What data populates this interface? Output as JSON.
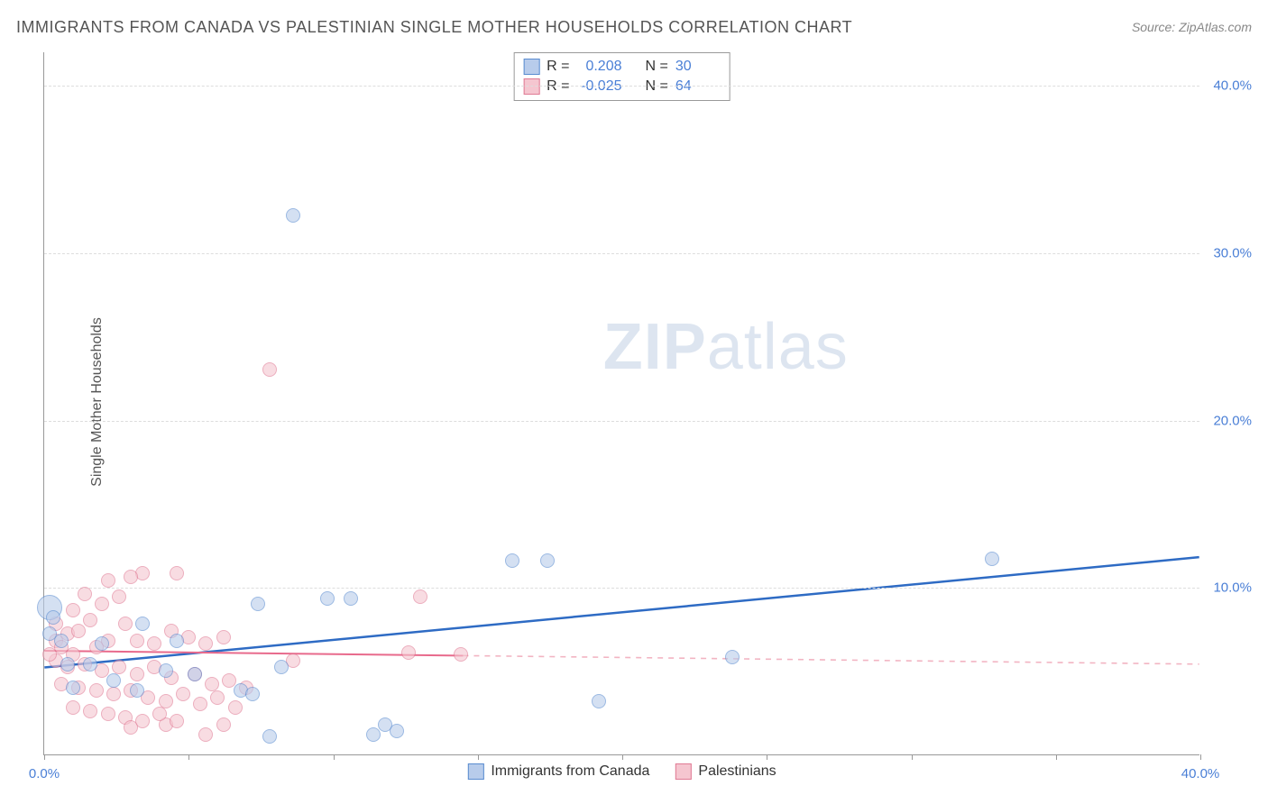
{
  "title": "IMMIGRANTS FROM CANADA VS PALESTINIAN SINGLE MOTHER HOUSEHOLDS CORRELATION CHART",
  "source": "Source: ZipAtlas.com",
  "ylabel": "Single Mother Households",
  "watermark_bold": "ZIP",
  "watermark_light": "atlas",
  "chart": {
    "type": "scatter",
    "xlim": [
      0,
      40
    ],
    "ylim": [
      0,
      42
    ],
    "x_ticks": [
      0,
      5,
      10,
      15,
      20,
      25,
      30,
      35,
      40
    ],
    "y_gridlines": [
      10,
      20,
      30,
      40
    ],
    "x_axis_labels": [
      {
        "pos": 0,
        "text": "0.0%"
      },
      {
        "pos": 40,
        "text": "40.0%"
      }
    ],
    "y_axis_labels": [
      {
        "pos": 10,
        "text": "10.0%"
      },
      {
        "pos": 20,
        "text": "20.0%"
      },
      {
        "pos": 30,
        "text": "30.0%"
      },
      {
        "pos": 40,
        "text": "40.0%"
      }
    ],
    "background_color": "#ffffff",
    "grid_color": "#dddddd",
    "axis_color": "#999999",
    "tick_label_color": "#4a7fd6",
    "marker_radius": 8,
    "marker_border_width": 1.2,
    "series": [
      {
        "name": "Immigrants from Canada",
        "fill_color": "#b8cceb",
        "border_color": "#5a8cd0",
        "fill_opacity": 0.6,
        "stats": {
          "R": "0.208",
          "N": "30"
        },
        "trend": {
          "solid_from_x": 0,
          "solid_to_x": 40,
          "y_at_x0": 5.2,
          "y_at_x40": 11.8,
          "color": "#2e6bc4",
          "width": 2.5
        },
        "points": [
          {
            "x": 0.2,
            "y": 8.8,
            "r": 14
          },
          {
            "x": 8.6,
            "y": 32.2
          },
          {
            "x": 16.2,
            "y": 11.6
          },
          {
            "x": 17.4,
            "y": 11.6
          },
          {
            "x": 23.8,
            "y": 5.8
          },
          {
            "x": 32.8,
            "y": 11.7
          },
          {
            "x": 19.2,
            "y": 3.2
          },
          {
            "x": 7.8,
            "y": 1.1
          },
          {
            "x": 11.4,
            "y": 1.2
          },
          {
            "x": 12.2,
            "y": 1.4
          },
          {
            "x": 11.8,
            "y": 1.8
          },
          {
            "x": 10.6,
            "y": 9.3
          },
          {
            "x": 9.8,
            "y": 9.3
          },
          {
            "x": 7.4,
            "y": 9.0
          },
          {
            "x": 8.2,
            "y": 5.2
          },
          {
            "x": 5.2,
            "y": 4.8
          },
          {
            "x": 4.2,
            "y": 5.0
          },
          {
            "x": 3.4,
            "y": 7.8
          },
          {
            "x": 1.6,
            "y": 5.4
          },
          {
            "x": 0.8,
            "y": 5.4
          },
          {
            "x": 0.6,
            "y": 6.8
          },
          {
            "x": 3.2,
            "y": 3.8
          },
          {
            "x": 6.8,
            "y": 3.8
          },
          {
            "x": 7.2,
            "y": 3.6
          },
          {
            "x": 0.2,
            "y": 7.2
          },
          {
            "x": 0.3,
            "y": 8.2
          },
          {
            "x": 1.0,
            "y": 4.0
          },
          {
            "x": 2.4,
            "y": 4.4
          },
          {
            "x": 2.0,
            "y": 6.6
          },
          {
            "x": 4.6,
            "y": 6.8
          }
        ]
      },
      {
        "name": "Palestinians",
        "fill_color": "#f5c6d0",
        "border_color": "#e07a94",
        "fill_opacity": 0.6,
        "stats": {
          "R": "-0.025",
          "N": "64"
        },
        "trend": {
          "solid_from_x": 0,
          "solid_to_x": 14.5,
          "dashed_to_x": 40,
          "y_at_x0": 6.2,
          "y_at_x40": 5.4,
          "color": "#e86a8c",
          "width": 2,
          "dash_color": "#f2b4c2"
        },
        "points": [
          {
            "x": 7.8,
            "y": 23.0
          },
          {
            "x": 13.0,
            "y": 9.4
          },
          {
            "x": 14.4,
            "y": 6.0
          },
          {
            "x": 12.6,
            "y": 6.1
          },
          {
            "x": 8.6,
            "y": 5.6
          },
          {
            "x": 5.6,
            "y": 1.2
          },
          {
            "x": 6.2,
            "y": 1.8
          },
          {
            "x": 4.2,
            "y": 1.8
          },
          {
            "x": 3.4,
            "y": 10.8
          },
          {
            "x": 3.0,
            "y": 10.6
          },
          {
            "x": 2.2,
            "y": 10.4
          },
          {
            "x": 4.6,
            "y": 10.8
          },
          {
            "x": 2.0,
            "y": 9.0
          },
          {
            "x": 2.6,
            "y": 9.4
          },
          {
            "x": 1.4,
            "y": 9.6
          },
          {
            "x": 2.8,
            "y": 7.8
          },
          {
            "x": 1.6,
            "y": 8.0
          },
          {
            "x": 0.8,
            "y": 7.2
          },
          {
            "x": 1.2,
            "y": 7.4
          },
          {
            "x": 0.4,
            "y": 6.8
          },
          {
            "x": 0.6,
            "y": 6.4
          },
          {
            "x": 1.0,
            "y": 6.0
          },
          {
            "x": 1.8,
            "y": 6.4
          },
          {
            "x": 2.2,
            "y": 6.8
          },
          {
            "x": 3.2,
            "y": 6.8
          },
          {
            "x": 3.8,
            "y": 6.6
          },
          {
            "x": 4.4,
            "y": 7.4
          },
          {
            "x": 5.0,
            "y": 7.0
          },
          {
            "x": 5.6,
            "y": 6.6
          },
          {
            "x": 6.2,
            "y": 7.0
          },
          {
            "x": 0.4,
            "y": 5.6
          },
          {
            "x": 0.8,
            "y": 5.2
          },
          {
            "x": 1.4,
            "y": 5.4
          },
          {
            "x": 2.0,
            "y": 5.0
          },
          {
            "x": 2.6,
            "y": 5.2
          },
          {
            "x": 3.2,
            "y": 4.8
          },
          {
            "x": 3.8,
            "y": 5.2
          },
          {
            "x": 4.4,
            "y": 4.6
          },
          {
            "x": 5.2,
            "y": 4.8
          },
          {
            "x": 5.8,
            "y": 4.2
          },
          {
            "x": 6.4,
            "y": 4.4
          },
          {
            "x": 7.0,
            "y": 4.0
          },
          {
            "x": 0.6,
            "y": 4.2
          },
          {
            "x": 1.2,
            "y": 4.0
          },
          {
            "x": 1.8,
            "y": 3.8
          },
          {
            "x": 2.4,
            "y": 3.6
          },
          {
            "x": 3.0,
            "y": 3.8
          },
          {
            "x": 3.6,
            "y": 3.4
          },
          {
            "x": 4.2,
            "y": 3.2
          },
          {
            "x": 4.8,
            "y": 3.6
          },
          {
            "x": 5.4,
            "y": 3.0
          },
          {
            "x": 6.0,
            "y": 3.4
          },
          {
            "x": 6.6,
            "y": 2.8
          },
          {
            "x": 1.0,
            "y": 2.8
          },
          {
            "x": 1.6,
            "y": 2.6
          },
          {
            "x": 2.2,
            "y": 2.4
          },
          {
            "x": 2.8,
            "y": 2.2
          },
          {
            "x": 3.4,
            "y": 2.0
          },
          {
            "x": 4.0,
            "y": 2.4
          },
          {
            "x": 4.6,
            "y": 2.0
          },
          {
            "x": 0.4,
            "y": 7.8
          },
          {
            "x": 0.2,
            "y": 6.0
          },
          {
            "x": 1.0,
            "y": 8.6
          },
          {
            "x": 3.0,
            "y": 1.6
          }
        ]
      }
    ]
  },
  "legend_top": [
    {
      "swatch_fill": "#b8cceb",
      "swatch_border": "#5a8cd0",
      "r_label": "R =",
      "r_val": "0.208",
      "n_label": "N =",
      "n_val": "30"
    },
    {
      "swatch_fill": "#f5c6d0",
      "swatch_border": "#e07a94",
      "r_label": "R =",
      "r_val": "-0.025",
      "n_label": "N =",
      "n_val": "64"
    }
  ],
  "legend_bottom": [
    {
      "swatch_fill": "#b8cceb",
      "swatch_border": "#5a8cd0",
      "label": "Immigrants from Canada"
    },
    {
      "swatch_fill": "#f5c6d0",
      "swatch_border": "#e07a94",
      "label": "Palestinians"
    }
  ]
}
